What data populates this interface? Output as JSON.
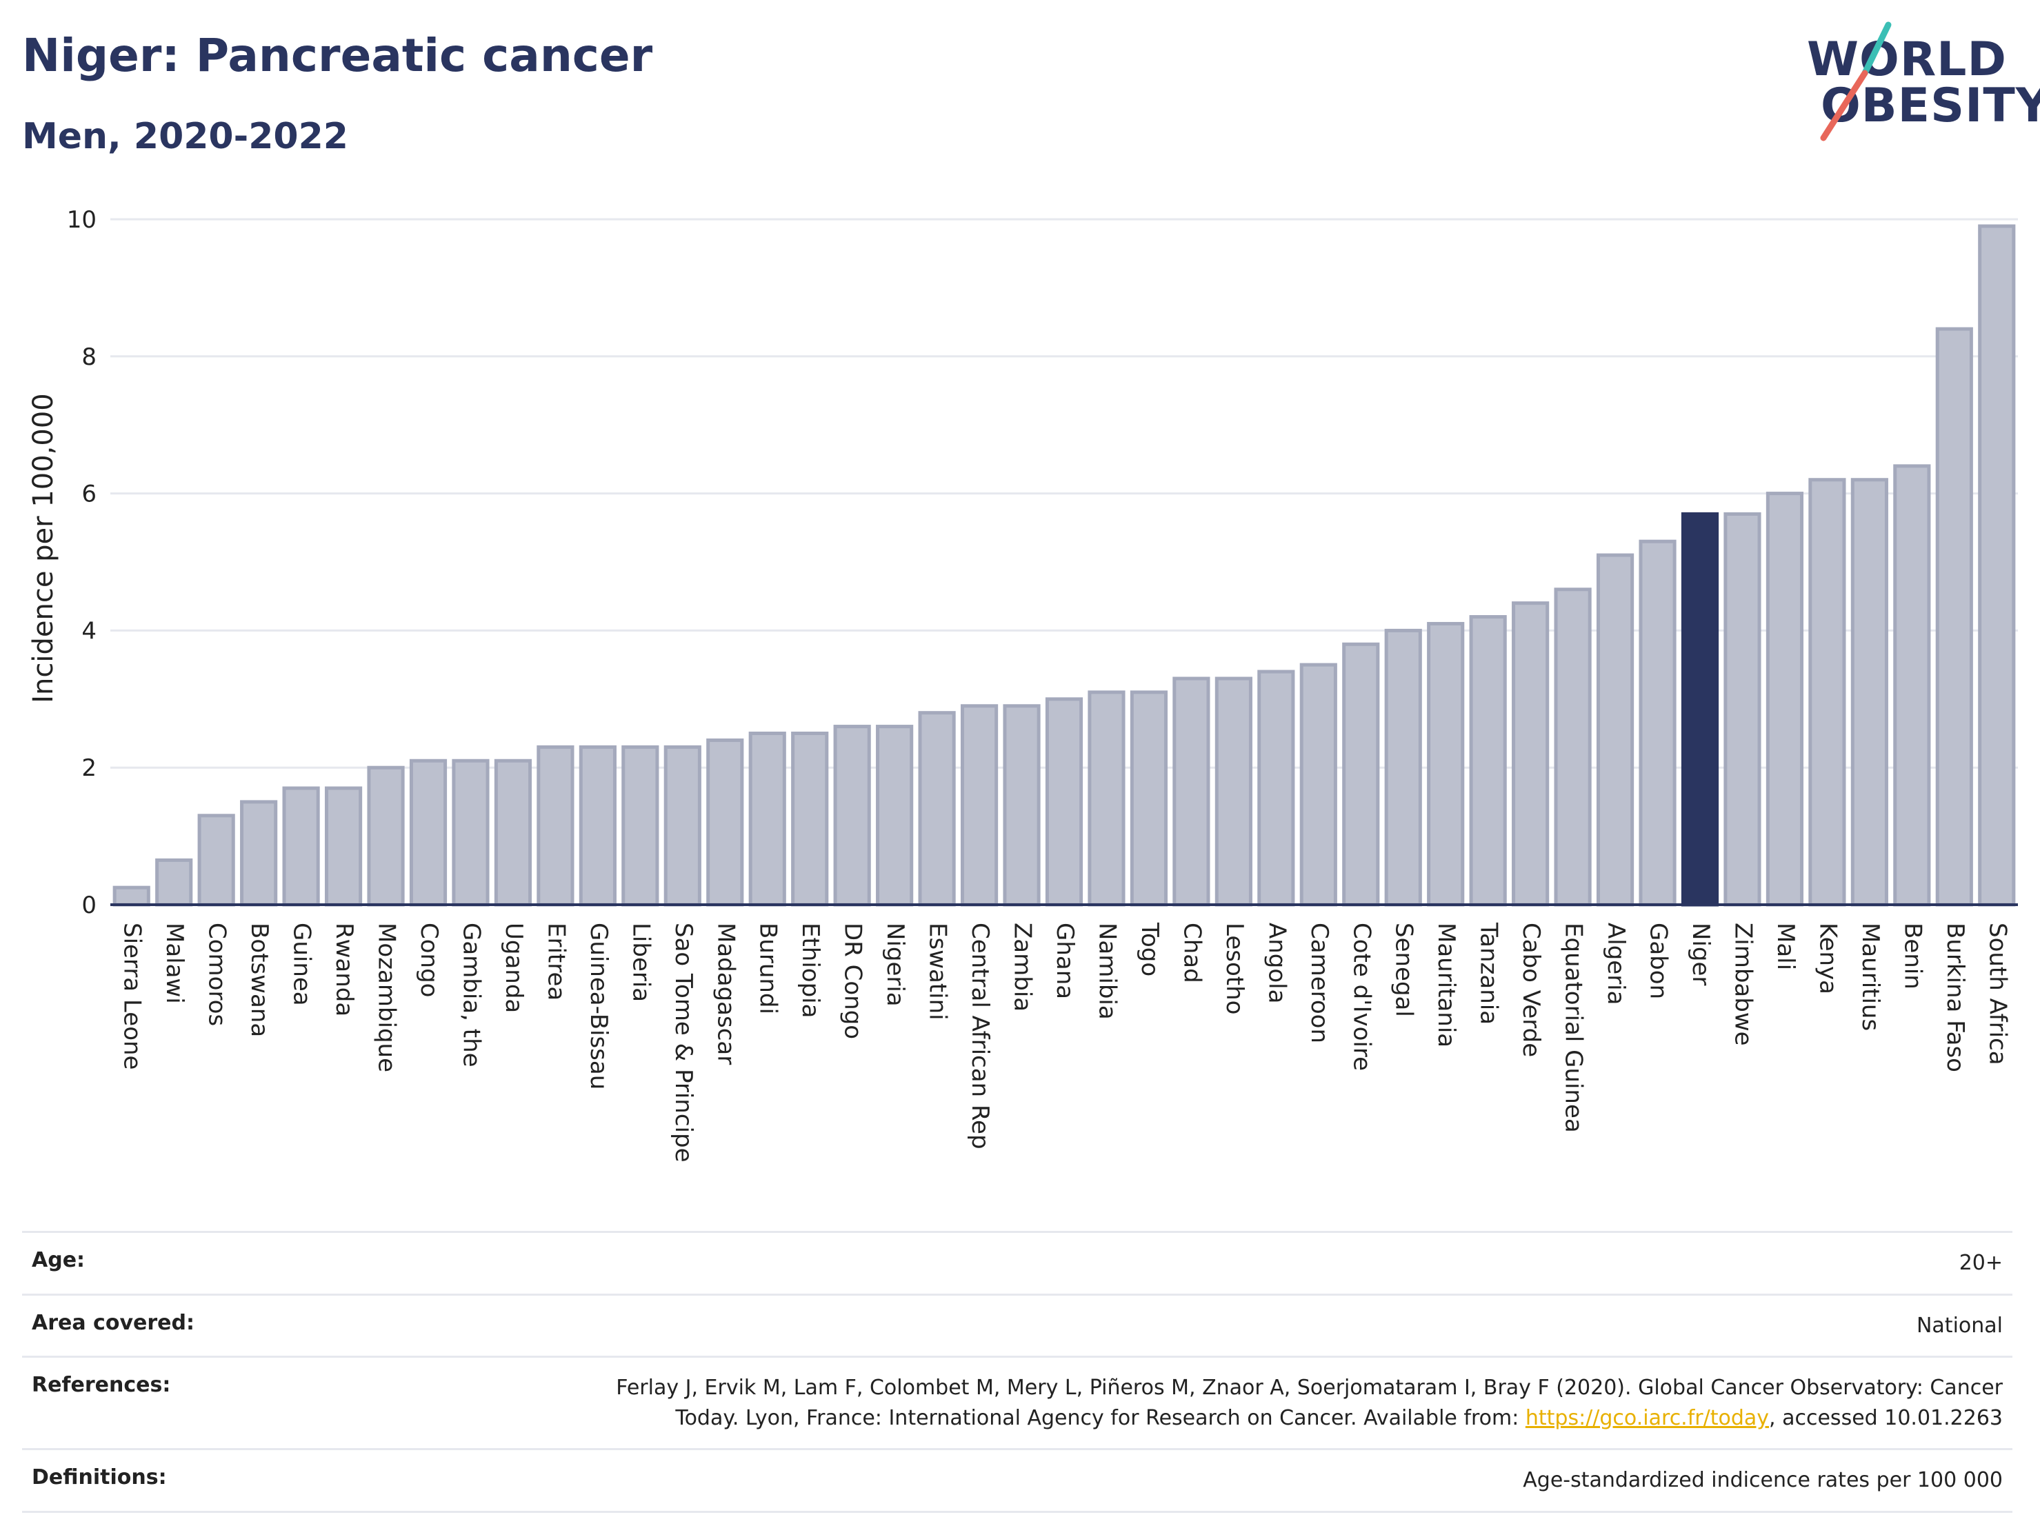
{
  "header": {
    "title": "Niger: Pancreatic cancer",
    "subtitle": "Men, 2020-2022"
  },
  "logo": {
    "line1": "WORLD",
    "line2": "OBESITY",
    "colors": {
      "text": "#2a3560",
      "slash_teal": "#3bbfb5",
      "slash_red": "#e8675a"
    }
  },
  "chart_data": {
    "type": "bar",
    "title": "Niger: Pancreatic cancer",
    "subtitle": "Men, 2020-2022",
    "xlabel": "",
    "ylabel": "Incidence per 100,000",
    "ylim": [
      0,
      10
    ],
    "yticks": [
      0,
      2,
      4,
      6,
      8,
      10
    ],
    "grid": true,
    "highlight": "Niger",
    "colors": {
      "bar": "#bcc0ce",
      "bar_edge": "#a4a9bc",
      "highlight": "#2a3560",
      "grid": "#e6e8ee",
      "axis": "#2a3560"
    },
    "categories": [
      "Sierra Leone",
      "Malawi",
      "Comoros",
      "Botswana",
      "Guinea",
      "Rwanda",
      "Mozambique",
      "Congo",
      "Gambia, the",
      "Uganda",
      "Eritrea",
      "Guinea-Bissau",
      "Liberia",
      "Sao Tome & Principe",
      "Madagascar",
      "Burundi",
      "Ethiopia",
      "DR Congo",
      "Nigeria",
      "Eswatini",
      "Central African Rep",
      "Zambia",
      "Ghana",
      "Namibia",
      "Togo",
      "Chad",
      "Lesotho",
      "Angola",
      "Cameroon",
      "Cote d'Ivoire",
      "Senegal",
      "Mauritania",
      "Tanzania",
      "Cabo Verde",
      "Equatorial Guinea",
      "Algeria",
      "Gabon",
      "Niger",
      "Zimbabwe",
      "Mali",
      "Kenya",
      "Mauritius",
      "Benin",
      "Burkina Faso",
      "South Africa"
    ],
    "values": [
      0.25,
      0.65,
      1.3,
      1.5,
      1.7,
      1.7,
      2.0,
      2.1,
      2.1,
      2.1,
      2.3,
      2.3,
      2.3,
      2.3,
      2.4,
      2.5,
      2.5,
      2.6,
      2.6,
      2.8,
      2.9,
      2.9,
      3.0,
      3.1,
      3.1,
      3.3,
      3.3,
      3.4,
      3.5,
      3.8,
      4.0,
      4.1,
      4.2,
      4.4,
      4.6,
      5.1,
      5.3,
      5.7,
      5.7,
      6.0,
      6.2,
      6.2,
      6.4,
      8.4,
      9.9
    ]
  },
  "meta": {
    "age": {
      "label": "Age:",
      "value": "20+"
    },
    "area": {
      "label": "Area covered:",
      "value": "National"
    },
    "references": {
      "label": "References:",
      "text_line1": "Ferlay J, Ervik M, Lam F, Colombet M, Mery L, Piñeros M, Znaor A, Soerjomataram I, Bray F (2020). Global Cancer Observatory: Cancer",
      "text_line2_pre": "Today. Lyon, France: International Agency for Research on Cancer. Available from: ",
      "link": "https://gco.iarc.fr/today",
      "text_line2_post": ", accessed 10.01.2263"
    },
    "definitions": {
      "label": "Definitions:",
      "value": "Age-standardized indicence rates per 100 000"
    }
  }
}
